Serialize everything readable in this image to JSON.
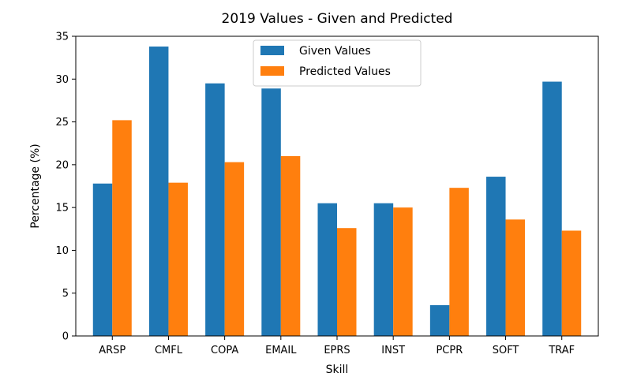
{
  "chart_data": {
    "type": "bar",
    "title": "2019 Values - Given and Predicted",
    "xlabel": "Skill",
    "ylabel": "Percentage (%)",
    "ylim": [
      0,
      35
    ],
    "yticks": [
      0,
      5,
      10,
      15,
      20,
      25,
      30,
      35
    ],
    "categories": [
      "ARSP",
      "CMFL",
      "COPA",
      "EMAIL",
      "EPRS",
      "INST",
      "PCPR",
      "SOFT",
      "TRAF"
    ],
    "series": [
      {
        "name": "Given Values",
        "color": "#1f77b4",
        "values": [
          17.8,
          33.8,
          29.5,
          28.9,
          15.5,
          15.5,
          3.6,
          18.6,
          29.7
        ]
      },
      {
        "name": "Predicted Values",
        "color": "#ff7f0e",
        "values": [
          25.2,
          17.9,
          20.3,
          21.0,
          12.6,
          15.0,
          17.3,
          13.6,
          12.3
        ]
      }
    ],
    "legend_position": "top-center",
    "grid": false
  }
}
